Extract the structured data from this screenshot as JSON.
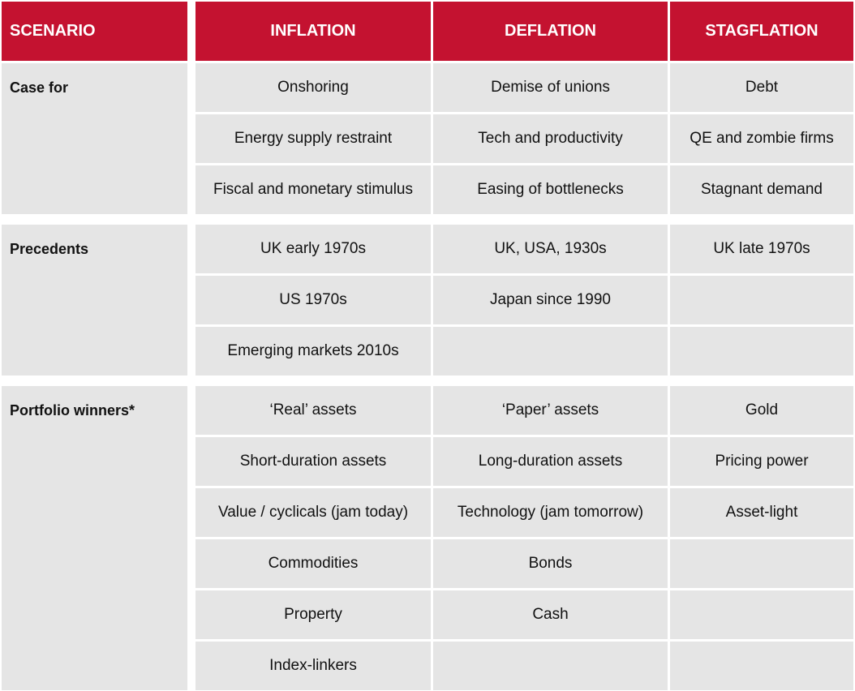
{
  "header": [
    "SCENARIO",
    "INFLATION",
    "DEFLATION",
    "STAGFLATION"
  ],
  "groups": [
    {
      "label": "Case for",
      "rows": [
        [
          "Onshoring",
          "Demise of unions",
          "Debt"
        ],
        [
          "Energy supply restraint",
          "Tech and productivity",
          "QE and zombie firms"
        ],
        [
          "Fiscal and monetary stimulus",
          "Easing of bottlenecks",
          "Stagnant demand"
        ]
      ]
    },
    {
      "label": "Precedents",
      "rows": [
        [
          "UK early 1970s",
          "UK, USA, 1930s",
          "UK late 1970s"
        ],
        [
          "US 1970s",
          "Japan since 1990",
          null
        ],
        [
          "Emerging markets 2010s",
          null,
          null
        ]
      ]
    },
    {
      "label": "Portfolio winners*",
      "rows": [
        [
          "‘Real’ assets",
          "‘Paper’ assets",
          "Gold"
        ],
        [
          "Short-duration assets",
          "Long-duration assets",
          "Pricing power"
        ],
        [
          "Value / cyclicals (jam today)",
          "Technology (jam tomorrow)",
          "Asset-light"
        ],
        [
          "Commodities",
          "Bonds",
          null
        ],
        [
          "Property",
          "Cash",
          null
        ],
        [
          "Index-linkers",
          null,
          null
        ]
      ]
    }
  ]
}
